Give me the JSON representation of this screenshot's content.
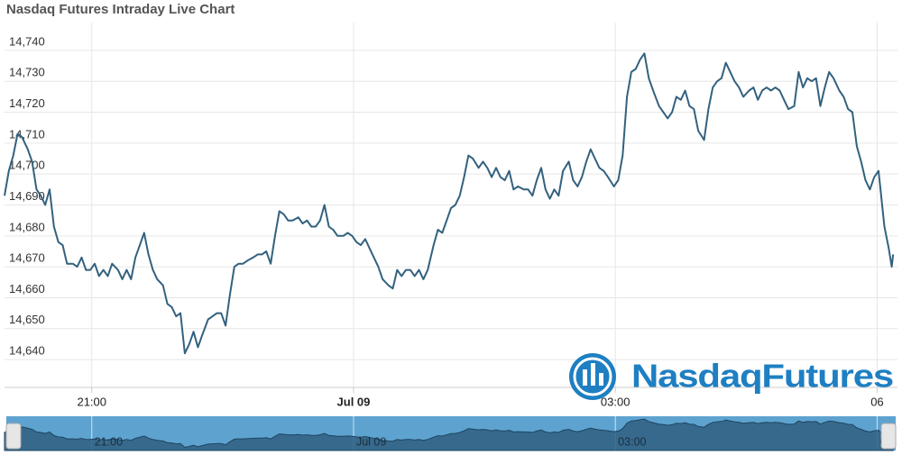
{
  "chart_data": {
    "type": "line",
    "title": "Nasdaq Futures Intraday Live Chart",
    "watermark": "NasdaqFutures",
    "xlim": [
      0,
      614
    ],
    "xticks": [
      {
        "value": 60,
        "label": "21:00"
      },
      {
        "value": 240,
        "label": "Jul 09"
      },
      {
        "value": 420,
        "label": "03:00"
      },
      {
        "value": 600,
        "label": "06"
      }
    ],
    "ylim": [
      14631,
      14749
    ],
    "yticks": [
      {
        "value": 14640,
        "label": "14,640"
      },
      {
        "value": 14650,
        "label": "14,650"
      },
      {
        "value": 14660,
        "label": "14,660"
      },
      {
        "value": 14670,
        "label": "14,670"
      },
      {
        "value": 14680,
        "label": "14,680"
      },
      {
        "value": 14690,
        "label": "14,690"
      },
      {
        "value": 14700,
        "label": "14,700"
      },
      {
        "value": 14710,
        "label": "14,710"
      },
      {
        "value": 14720,
        "label": "14,720"
      },
      {
        "value": 14730,
        "label": "14,730"
      },
      {
        "value": 14740,
        "label": "14,740"
      }
    ],
    "grid": true,
    "x": [
      0,
      3,
      6,
      9,
      12,
      16,
      19,
      22,
      25,
      28,
      31,
      34,
      37,
      40,
      43,
      47,
      50,
      53,
      56,
      59,
      62,
      65,
      68,
      71,
      74,
      78,
      81,
      84,
      87,
      90,
      93,
      96,
      99,
      102,
      105,
      109,
      112,
      115,
      118,
      121,
      124,
      127,
      130,
      133,
      136,
      140,
      143,
      146,
      149,
      152,
      155,
      158,
      161,
      164,
      167,
      171,
      174,
      177,
      180,
      183,
      186,
      189,
      192,
      195,
      198,
      202,
      205,
      208,
      211,
      214,
      217,
      220,
      223,
      226,
      229,
      233,
      236,
      239,
      242,
      245,
      248,
      251,
      254,
      257,
      260,
      264,
      267,
      270,
      273,
      276,
      279,
      282,
      285,
      288,
      291,
      295,
      298,
      301,
      304,
      307,
      310,
      313,
      316,
      319,
      322,
      326,
      329,
      332,
      335,
      338,
      341,
      344,
      347,
      350,
      353,
      357,
      360,
      363,
      366,
      369,
      372,
      375,
      378,
      381,
      384,
      388,
      391,
      394,
      397,
      400,
      403,
      406,
      409,
      412,
      415,
      419,
      422,
      425,
      428,
      431,
      434,
      437,
      440,
      443,
      446,
      450,
      453,
      456,
      459,
      462,
      465,
      468,
      471,
      474,
      477,
      481,
      484,
      487,
      490,
      493,
      496,
      499,
      502,
      505,
      508,
      512,
      515,
      518,
      521,
      524,
      527,
      530,
      533,
      536,
      539,
      543,
      546,
      549,
      552,
      555,
      558,
      561,
      564,
      567,
      570,
      574,
      577,
      580,
      583,
      586,
      589,
      592,
      595,
      598,
      601,
      605,
      608,
      610,
      611
    ],
    "series": [
      {
        "color": "#33617f",
        "values": [
          14693,
          14701,
          14706,
          14713,
          14712,
          14708,
          14704,
          14695,
          14693,
          14690,
          14695,
          14683,
          14678,
          14677,
          14671,
          14671,
          14670,
          14673,
          14669,
          14669,
          14671,
          14667,
          14669,
          14667,
          14671,
          14669,
          14666,
          14669,
          14666,
          14673,
          14677,
          14681,
          14674,
          14669,
          14666,
          14664,
          14658,
          14657,
          14654,
          14655,
          14642,
          14645,
          14649,
          14644,
          14648,
          14653,
          14654,
          14655,
          14655,
          14651,
          14661,
          14670,
          14671,
          14671,
          14672,
          14673,
          14674,
          14674,
          14675,
          14671,
          14680,
          14688,
          14687,
          14685,
          14685,
          14686,
          14684,
          14685,
          14683,
          14683,
          14685,
          14690,
          14683,
          14682,
          14680,
          14680,
          14681,
          14680,
          14678,
          14677,
          14679,
          14676,
          14673,
          14670,
          14666,
          14664,
          14663,
          14669,
          14667,
          14669,
          14669,
          14667,
          14669,
          14666,
          14669,
          14677,
          14682,
          14681,
          14685,
          14689,
          14690,
          14693,
          14699,
          14706,
          14705,
          14702,
          14704,
          14702,
          14699,
          14702,
          14699,
          14698,
          14701,
          14695,
          14696,
          14695,
          14695,
          14693,
          14698,
          14702,
          14695,
          14692,
          14695,
          14693,
          14701,
          14704,
          14698,
          14696,
          14699,
          14704,
          14708,
          14705,
          14702,
          14701,
          14699,
          14696,
          14698,
          14706,
          14725,
          14733,
          14734,
          14737,
          14739,
          14731,
          14727,
          14722,
          14720,
          14718,
          14720,
          14725,
          14724,
          14727,
          14722,
          14721,
          14714,
          14711,
          14721,
          14728,
          14730,
          14731,
          14736,
          14733,
          14730,
          14728,
          14725,
          14727,
          14728,
          14724,
          14727,
          14728,
          14727,
          14728,
          14727,
          14724,
          14721,
          14722,
          14733,
          14728,
          14731,
          14730,
          14731,
          14722,
          14728,
          14733,
          14731,
          14727,
          14725,
          14721,
          14720,
          14709,
          14704,
          14698,
          14695,
          14699,
          14701,
          14683,
          14676,
          14670,
          14674
        ]
      }
    ]
  }
}
